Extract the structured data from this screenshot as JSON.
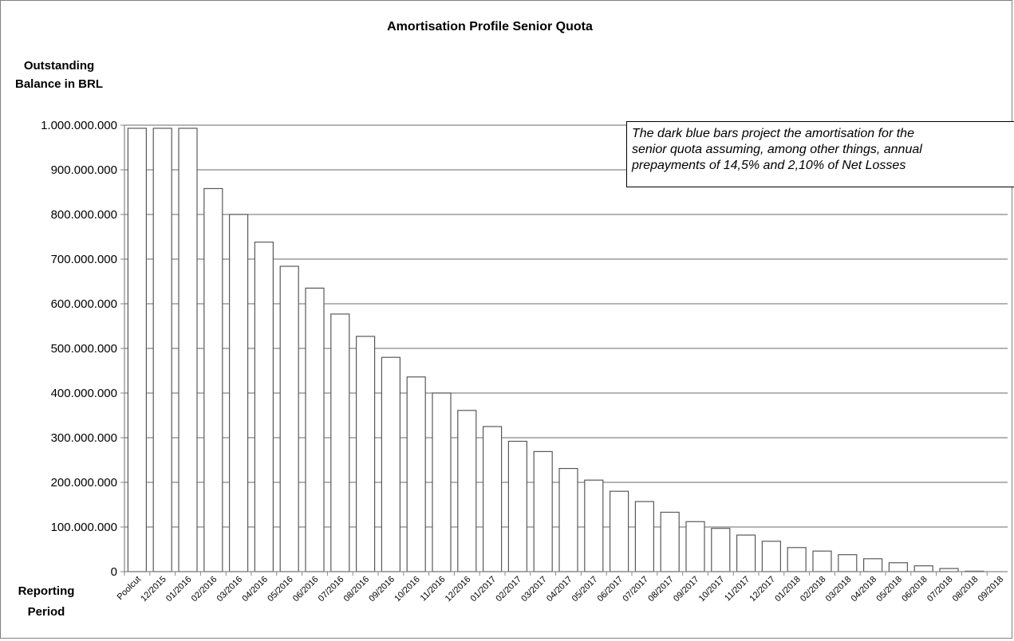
{
  "chart_data": {
    "type": "bar",
    "title": "Amortisation Profile Senior Quota",
    "ylabel_lines": [
      "Outstanding",
      "Balance in BRL"
    ],
    "xlabel_lines": [
      "Reporting",
      "Period"
    ],
    "ylim": [
      0,
      1000000000
    ],
    "yticks": [
      0,
      100000000,
      200000000,
      300000000,
      400000000,
      500000000,
      600000000,
      700000000,
      800000000,
      900000000,
      1000000000
    ],
    "ytick_labels": [
      "0",
      "100.000.000",
      "200.000.000",
      "300.000.000",
      "400.000.000",
      "500.000.000",
      "600.000.000",
      "700.000.000",
      "800.000.000",
      "900.000.000",
      "1.000.000.000"
    ],
    "grid": true,
    "bar_fill": "#ffffff",
    "bar_stroke": "#595959",
    "categories": [
      "Poolcut",
      "12/2015",
      "01/2016",
      "02/2016",
      "03/2016",
      "04/2016",
      "05/2016",
      "06/2016",
      "07/2016",
      "08/2016",
      "09/2016",
      "10/2016",
      "11/2016",
      "12/2016",
      "01/2017",
      "02/2017",
      "03/2017",
      "04/2017",
      "05/2017",
      "06/2017",
      "07/2017",
      "08/2017",
      "09/2017",
      "10/2017",
      "11/2017",
      "12/2017",
      "01/2018",
      "02/2018",
      "03/2018",
      "04/2018",
      "05/2018",
      "06/2018",
      "07/2018",
      "08/2018",
      "09/2018"
    ],
    "values": [
      993000000,
      993000000,
      993000000,
      858000000,
      800000000,
      738000000,
      684000000,
      635000000,
      577000000,
      527000000,
      480000000,
      436000000,
      400000000,
      361000000,
      325000000,
      292000000,
      269000000,
      231000000,
      205000000,
      180000000,
      157000000,
      133000000,
      112000000,
      97000000,
      82000000,
      68000000,
      54000000,
      46000000,
      38000000,
      29000000,
      20000000,
      13000000,
      7000000,
      1000000,
      0
    ],
    "annotation_lines": [
      "The dark blue bars project the amortisation for the",
      "senior quota assuming, among other things, annual",
      "prepayments of 14,5% and 2,10% of Net Losses"
    ]
  }
}
